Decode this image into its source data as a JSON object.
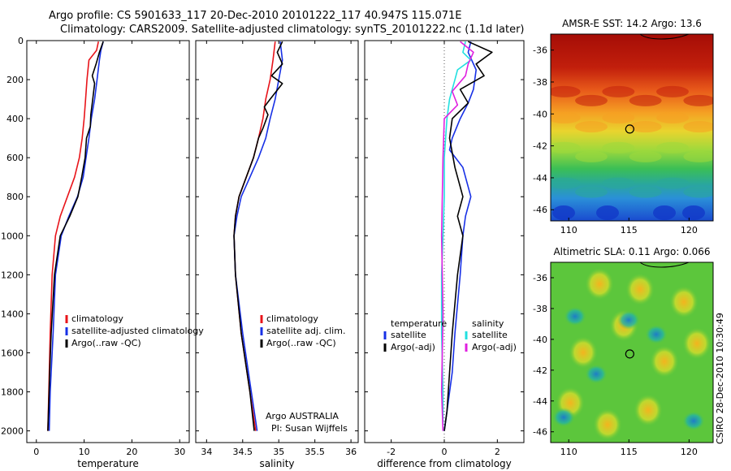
{
  "figure": {
    "title_line1": "Argo profile: CS 5901633_117 20-Dec-2010 20101222_117 40.947S 115.071E",
    "title_line2": "Climatology: CARS2009. Satellite-adjusted climatology: synTS_20101222.nc (1.1d later)",
    "side_label": "CSIRO 28-Dec-2010 10:30:49",
    "credit_line1": "Argo AUSTRALIA",
    "credit_line2": "PI: Susan Wijffels"
  },
  "colors": {
    "red": "#e8141a",
    "blue": "#1730e6",
    "black": "#000000",
    "cyan": "#22e0e0",
    "magenta": "#e020e0"
  },
  "chart_data": [
    {
      "type": "line",
      "xlabel": "temperature",
      "xlim": [
        -2,
        32
      ],
      "ylim": [
        2060,
        0
      ],
      "xticks": [
        0,
        10,
        20,
        30
      ],
      "yticks": [
        0,
        200,
        400,
        600,
        800,
        1000,
        1200,
        1400,
        1600,
        1800,
        2000
      ],
      "legend": {
        "placement": "bottom-right"
      },
      "series": [
        {
          "name": "climatology",
          "color": "red",
          "x": [
            13.0,
            12.6,
            11.0,
            10.6,
            10.3,
            10.0,
            9.6,
            9.0,
            8.0,
            6.5,
            5.0,
            4.0,
            3.3,
            2.9,
            2.6,
            2.4
          ],
          "y": [
            5,
            50,
            100,
            200,
            300,
            400,
            500,
            600,
            700,
            800,
            900,
            1000,
            1200,
            1500,
            1800,
            2000
          ]
        },
        {
          "name": "satellite-adjusted climatology",
          "color": "blue",
          "x": [
            14.0,
            13.5,
            13.2,
            12.7,
            12.2,
            11.5,
            11.0,
            10.4,
            9.8,
            8.6,
            6.8,
            5.2,
            4.0,
            3.5,
            2.9,
            2.7
          ],
          "y": [
            5,
            50,
            100,
            200,
            300,
            400,
            500,
            600,
            700,
            800,
            900,
            1000,
            1200,
            1500,
            1800,
            2000
          ]
        },
        {
          "name": "Argo(..raw -QC)",
          "color": "black",
          "x": [
            14.0,
            13.2,
            12.5,
            11.7,
            12.2,
            11.8,
            11.4,
            11.3,
            10.5,
            10.2,
            9.5,
            8.7,
            7.0,
            5.0,
            3.8,
            3.1,
            2.8,
            2.6,
            2.4
          ],
          "y": [
            5,
            60,
            120,
            180,
            220,
            300,
            380,
            440,
            500,
            600,
            700,
            800,
            900,
            1000,
            1200,
            1500,
            1700,
            1850,
            2000
          ]
        }
      ]
    },
    {
      "type": "line",
      "xlabel": "salinity",
      "xlim": [
        33.85,
        36.1
      ],
      "ylim": [
        2060,
        0
      ],
      "xticks": [
        34,
        34.5,
        35,
        35.5,
        36
      ],
      "xticklabels": [
        "34",
        "34.5",
        "35",
        "35.5",
        "36"
      ],
      "legend": {
        "placement": "bottom-right"
      },
      "series": [
        {
          "name": "climatology",
          "color": "red",
          "x": [
            34.95,
            34.92,
            34.88,
            34.82,
            34.78,
            34.72,
            34.65,
            34.55,
            34.45,
            34.4,
            34.38,
            34.4,
            34.48,
            34.6,
            34.68
          ],
          "y": [
            5,
            100,
            200,
            300,
            400,
            500,
            600,
            700,
            800,
            900,
            1000,
            1200,
            1500,
            1800,
            2000
          ]
        },
        {
          "name": "satellite adj. clim.",
          "color": "blue",
          "x": [
            35.02,
            35.05,
            35.0,
            34.95,
            34.88,
            34.82,
            34.72,
            34.6,
            34.48,
            34.42,
            34.38,
            34.4,
            34.5,
            34.62,
            34.7
          ],
          "y": [
            5,
            100,
            200,
            300,
            400,
            500,
            600,
            700,
            800,
            900,
            1000,
            1200,
            1500,
            1800,
            2000
          ]
        },
        {
          "name": "Argo(..raw -QC)",
          "color": "black",
          "x": [
            35.05,
            34.98,
            35.05,
            34.9,
            35.05,
            34.88,
            34.8,
            34.85,
            34.78,
            34.72,
            34.65,
            34.55,
            34.45,
            34.4,
            34.38,
            34.4,
            34.48,
            34.6,
            34.66
          ],
          "y": [
            5,
            60,
            120,
            180,
            220,
            300,
            340,
            380,
            450,
            500,
            600,
            700,
            800,
            900,
            1000,
            1200,
            1500,
            1800,
            2000
          ]
        }
      ]
    },
    {
      "type": "line",
      "xlabel": "difference from climatology",
      "xlim": [
        -3,
        3
      ],
      "ylim": [
        2060,
        0
      ],
      "xticks": [
        -2,
        0,
        2
      ],
      "legend": {
        "placement": "bottom",
        "col1_header": "temperature",
        "col2_header": "salinity"
      },
      "series": [
        {
          "name": "satellite",
          "group": "temperature",
          "color": "blue",
          "x": [
            1.0,
            0.9,
            1.2,
            1.1,
            0.9,
            0.6,
            0.3,
            0.2,
            0.7,
            1.0,
            0.8,
            0.7,
            0.6,
            0.4,
            0.3,
            0.1,
            0.0
          ],
          "y": [
            5,
            60,
            150,
            250,
            320,
            400,
            500,
            560,
            650,
            800,
            900,
            1000,
            1200,
            1500,
            1700,
            1900,
            2000
          ]
        },
        {
          "name": "Argo(-adj)",
          "group": "temperature",
          "color": "black",
          "x": [
            0.9,
            1.8,
            1.2,
            1.5,
            0.6,
            0.9,
            0.3,
            0.2,
            0.4,
            0.7,
            0.5,
            0.7,
            0.5,
            0.3,
            0.2,
            0.1,
            0.0
          ],
          "y": [
            5,
            60,
            120,
            180,
            250,
            320,
            400,
            500,
            650,
            800,
            900,
            1000,
            1200,
            1500,
            1700,
            1900,
            2000
          ]
        },
        {
          "name": "satellite",
          "group": "salinity",
          "color": "cyan",
          "x": [
            0.8,
            0.7,
            1.0,
            0.5,
            0.4,
            0.2,
            0.1,
            0.0,
            0.0,
            -0.05,
            -0.1,
            -0.1,
            -0.05,
            -0.05
          ],
          "y": [
            5,
            60,
            100,
            150,
            200,
            300,
            400,
            600,
            800,
            1000,
            1200,
            1500,
            1800,
            2000
          ]
        },
        {
          "name": "Argo(-adj)",
          "group": "salinity",
          "color": "magenta",
          "x": [
            0.6,
            1.1,
            0.9,
            0.8,
            0.3,
            0.5,
            0.0,
            -0.05,
            -0.1,
            -0.05,
            -0.1,
            -0.05
          ],
          "y": [
            5,
            60,
            120,
            180,
            260,
            330,
            400,
            600,
            1000,
            1400,
            1800,
            2000
          ]
        }
      ]
    },
    {
      "type": "heatmap",
      "title": "AMSR-E SST: 14.2 Argo: 13.6",
      "xlim": [
        108.5,
        122
      ],
      "ylim": [
        -46.7,
        -35.0
      ],
      "xticks": [
        110,
        115,
        120
      ],
      "yticks": [
        -36,
        -38,
        -40,
        -42,
        -44,
        -46
      ],
      "marker": {
        "lon": 115.071,
        "lat": -40.947
      }
    },
    {
      "type": "heatmap",
      "title": "Altimetric SLA: 0.11 Argo: 0.066",
      "xlim": [
        108.5,
        122
      ],
      "ylim": [
        -46.7,
        -35.0
      ],
      "xticks": [
        110,
        115,
        120
      ],
      "yticks": [
        -36,
        -38,
        -40,
        -42,
        -44,
        -46
      ],
      "marker": {
        "lon": 115.071,
        "lat": -40.947
      }
    }
  ]
}
